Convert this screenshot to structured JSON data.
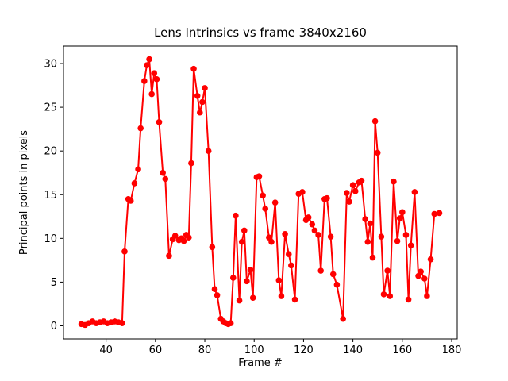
{
  "chart_data": {
    "type": "line",
    "title": "Lens Intrinsics vs frame 3840x2160",
    "xlabel": "Frame #",
    "ylabel": "Principal points in pixels",
    "xlim": [
      22.75,
      182.25
    ],
    "ylim": [
      -1.5,
      32.0
    ],
    "xticks": [
      40,
      60,
      80,
      100,
      120,
      140,
      160,
      180
    ],
    "yticks": [
      0,
      5,
      10,
      15,
      20,
      25,
      30
    ],
    "grid": false,
    "legend": "none",
    "line_color": "#ff0000",
    "marker": "circle",
    "points": [
      [
        30,
        0.2
      ],
      [
        31.5,
        0.1
      ],
      [
        33,
        0.3
      ],
      [
        34.5,
        0.5
      ],
      [
        36,
        0.3
      ],
      [
        37.5,
        0.4
      ],
      [
        39,
        0.5
      ],
      [
        40.5,
        0.3
      ],
      [
        42,
        0.4
      ],
      [
        43.5,
        0.5
      ],
      [
        45,
        0.4
      ],
      [
        46.5,
        0.3
      ],
      [
        47.5,
        8.5
      ],
      [
        49,
        14.5
      ],
      [
        50,
        14.3
      ],
      [
        51.5,
        16.3
      ],
      [
        53,
        17.9
      ],
      [
        54,
        22.6
      ],
      [
        55.5,
        28.0
      ],
      [
        56.5,
        29.8
      ],
      [
        57.5,
        30.5
      ],
      [
        58.5,
        26.5
      ],
      [
        59.5,
        28.9
      ],
      [
        60.5,
        28.2
      ],
      [
        61.5,
        23.3
      ],
      [
        63,
        17.5
      ],
      [
        64,
        16.8
      ],
      [
        65.5,
        8.0
      ],
      [
        67,
        9.9
      ],
      [
        68,
        10.3
      ],
      [
        69.5,
        9.8
      ],
      [
        70.5,
        10.0
      ],
      [
        71.5,
        9.7
      ],
      [
        72.5,
        10.4
      ],
      [
        73.5,
        10.1
      ],
      [
        74.5,
        18.6
      ],
      [
        75.5,
        29.4
      ],
      [
        77,
        26.3
      ],
      [
        78,
        24.4
      ],
      [
        79,
        25.6
      ],
      [
        80,
        27.2
      ],
      [
        81.5,
        20.0
      ],
      [
        83,
        9.0
      ],
      [
        84,
        4.2
      ],
      [
        85,
        3.5
      ],
      [
        86.5,
        0.8
      ],
      [
        87.5,
        0.5
      ],
      [
        88.5,
        0.3
      ],
      [
        89.5,
        0.2
      ],
      [
        90.5,
        0.3
      ],
      [
        91.5,
        5.5
      ],
      [
        92.5,
        12.6
      ],
      [
        94,
        2.9
      ],
      [
        95,
        9.6
      ],
      [
        96,
        10.9
      ],
      [
        97,
        5.1
      ],
      [
        98.5,
        6.4
      ],
      [
        99.5,
        3.2
      ],
      [
        101,
        17.0
      ],
      [
        102,
        17.1
      ],
      [
        103.5,
        14.9
      ],
      [
        104.5,
        13.4
      ],
      [
        106,
        10.1
      ],
      [
        107,
        9.6
      ],
      [
        108.5,
        14.1
      ],
      [
        110,
        5.2
      ],
      [
        111,
        3.4
      ],
      [
        112.5,
        10.5
      ],
      [
        114,
        8.2
      ],
      [
        115,
        6.9
      ],
      [
        116.5,
        3.0
      ],
      [
        118,
        15.1
      ],
      [
        119.5,
        15.3
      ],
      [
        121,
        12.1
      ],
      [
        122,
        12.4
      ],
      [
        123.5,
        11.6
      ],
      [
        124.5,
        10.9
      ],
      [
        126,
        10.4
      ],
      [
        127,
        6.3
      ],
      [
        128.5,
        14.5
      ],
      [
        129.5,
        14.6
      ],
      [
        131,
        10.2
      ],
      [
        132,
        5.9
      ],
      [
        133.5,
        4.7
      ],
      [
        136,
        0.8
      ],
      [
        137.5,
        15.2
      ],
      [
        138.5,
        14.2
      ],
      [
        140,
        16.1
      ],
      [
        141,
        15.4
      ],
      [
        142.5,
        16.4
      ],
      [
        143.5,
        16.6
      ],
      [
        145,
        12.2
      ],
      [
        146,
        9.6
      ],
      [
        147,
        11.7
      ],
      [
        148,
        7.8
      ],
      [
        149,
        23.4
      ],
      [
        150,
        19.8
      ],
      [
        151.5,
        10.2
      ],
      [
        152.5,
        3.6
      ],
      [
        154,
        6.3
      ],
      [
        155,
        3.4
      ],
      [
        156.5,
        16.5
      ],
      [
        158,
        9.7
      ],
      [
        159,
        12.3
      ],
      [
        160,
        13.0
      ],
      [
        161.5,
        10.4
      ],
      [
        162.5,
        3.0
      ],
      [
        163.5,
        9.2
      ],
      [
        165,
        15.3
      ],
      [
        166.5,
        5.7
      ],
      [
        167.5,
        6.2
      ],
      [
        169,
        5.4
      ],
      [
        170,
        3.4
      ],
      [
        171.5,
        7.6
      ],
      [
        173,
        12.8
      ],
      [
        175,
        12.9
      ]
    ],
    "colors": {
      "background": "#ffffff",
      "axes_frame": "#000000",
      "text": "#000000"
    }
  }
}
